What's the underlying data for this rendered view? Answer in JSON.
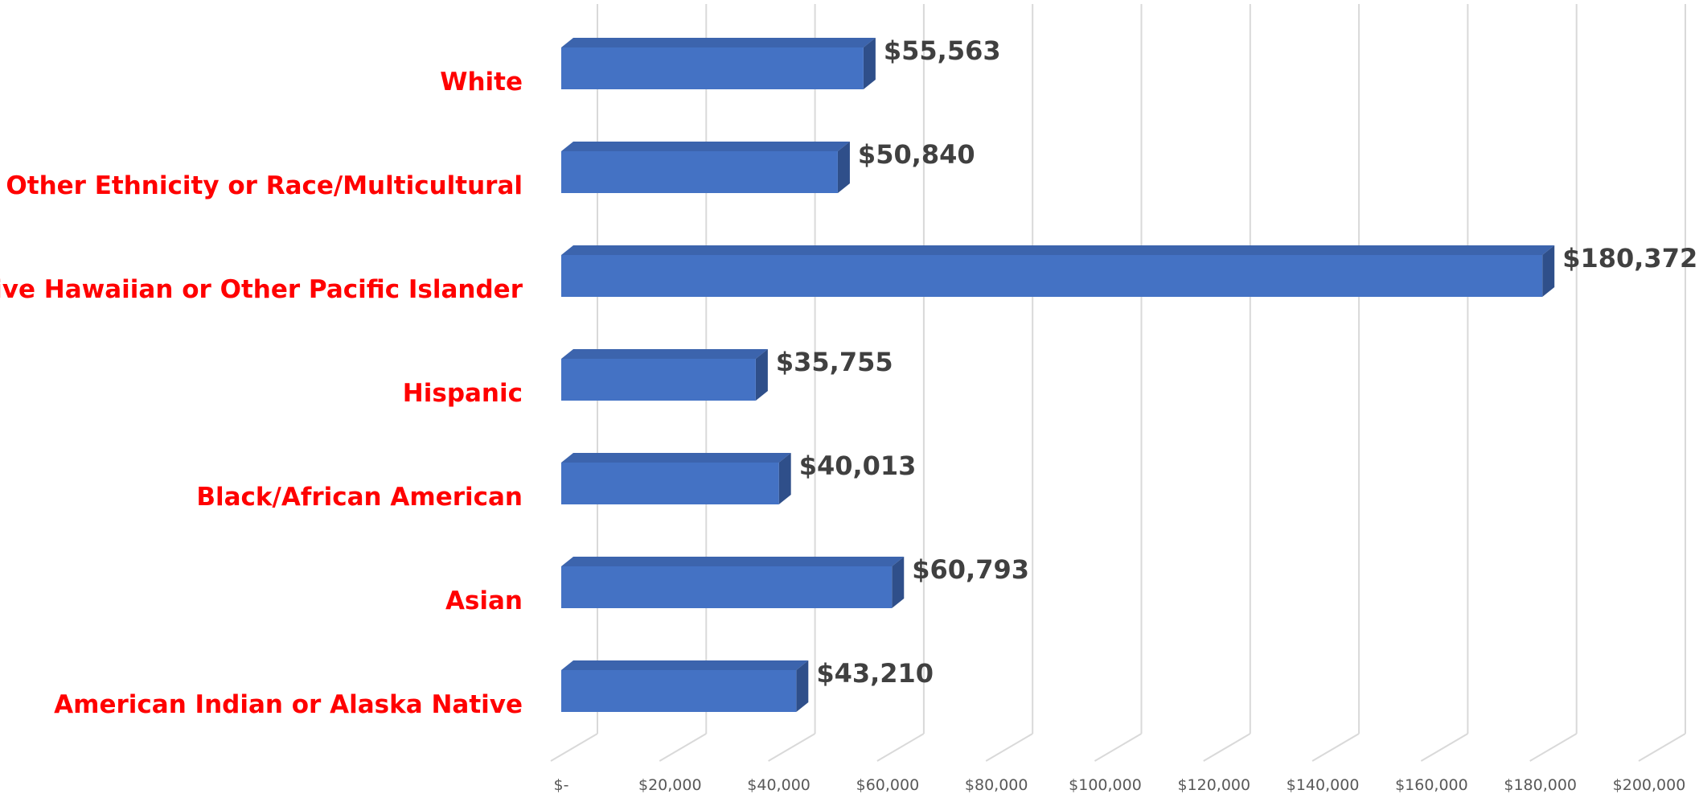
{
  "chart_data": {
    "type": "bar",
    "orientation": "horizontal",
    "categories": [
      "White",
      "Other Ethnicity or Race/Multicultural",
      "Native Hawaiian or Other Pacific Islander",
      "Hispanic",
      "Black/African American",
      "Asian",
      "American Indian or Alaska Native"
    ],
    "values": [
      55563,
      50840,
      180372,
      35755,
      40013,
      60793,
      43210
    ],
    "value_labels": [
      "$55,563",
      "$50,840",
      "$180,372",
      "$35,755",
      "$40,013",
      "$60,793",
      "$43,210"
    ],
    "x_ticks": [
      "$-",
      "$20,000",
      "$40,000",
      "$60,000",
      "$80,000",
      "$100,000",
      "$120,000",
      "$140,000",
      "$160,000",
      "$180,000",
      "$200,000"
    ],
    "xlim": [
      0,
      200000
    ],
    "title": "",
    "xlabel": "",
    "ylabel": "",
    "grid": true,
    "legend": "none",
    "style": "3d"
  },
  "colors": {
    "bar_front": "#4472c4",
    "bar_top": "#3c64ad",
    "bar_side": "#2f4f8a",
    "category_label": "#ff0000",
    "value_label": "#404040",
    "grid": "#d9d9d9",
    "tick_label": "#595959"
  }
}
